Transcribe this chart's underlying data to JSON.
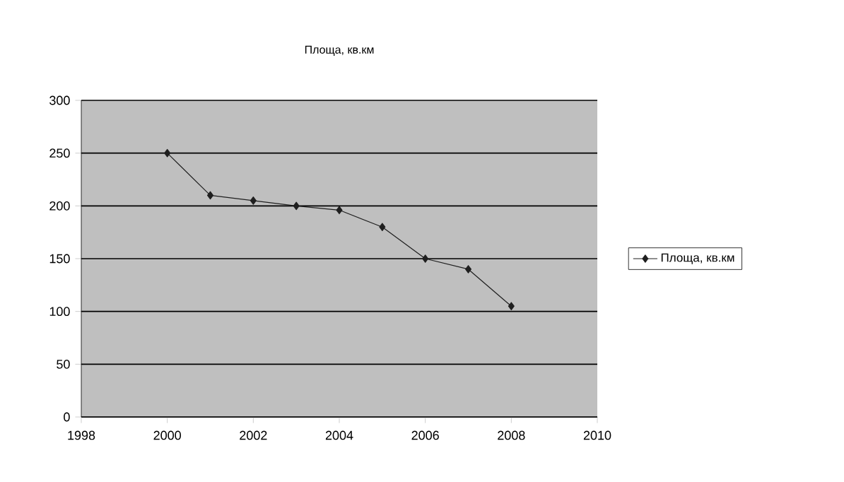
{
  "chart_data": {
    "type": "line",
    "title": "Площа, кв.км",
    "x": [
      2000,
      2001,
      2002,
      2003,
      2004,
      2005,
      2006,
      2007,
      2008
    ],
    "series": [
      {
        "name": "Площа, кв.км",
        "color": "#1f1f1f",
        "values": [
          250,
          210,
          205,
          200,
          196,
          180,
          150,
          140,
          105
        ]
      }
    ],
    "xlim": [
      1998,
      2010
    ],
    "ylim": [
      0,
      300
    ],
    "xticks": [
      1998,
      2000,
      2002,
      2004,
      2006,
      2008,
      2010
    ],
    "yticks": [
      0,
      50,
      100,
      150,
      200,
      250,
      300
    ],
    "grid": "y",
    "legend": "right",
    "marker": "diamond",
    "line_style": "solid"
  }
}
